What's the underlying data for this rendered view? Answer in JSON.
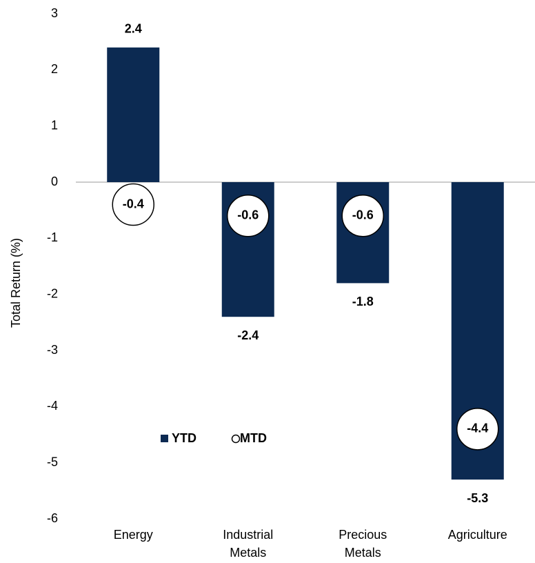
{
  "chart_data": {
    "type": "bar",
    "y_label": "Total Return (%)",
    "categories": [
      "Energy",
      "Industrial Metals",
      "Precious Metals",
      "Agriculture"
    ],
    "series": [
      {
        "name": "YTD",
        "color": "#0c2a52",
        "values": [
          2.4,
          -2.4,
          -1.8,
          -5.3
        ]
      },
      {
        "name": "MTD",
        "color": "#ffffff",
        "marker": "circle",
        "values": [
          -0.4,
          -0.6,
          -0.6,
          -4.4
        ]
      }
    ],
    "ylim": [
      -6,
      3
    ],
    "yticks": [
      -6,
      -5,
      -4,
      -3,
      -2,
      -1,
      0,
      1,
      2,
      3
    ],
    "grid": false
  }
}
